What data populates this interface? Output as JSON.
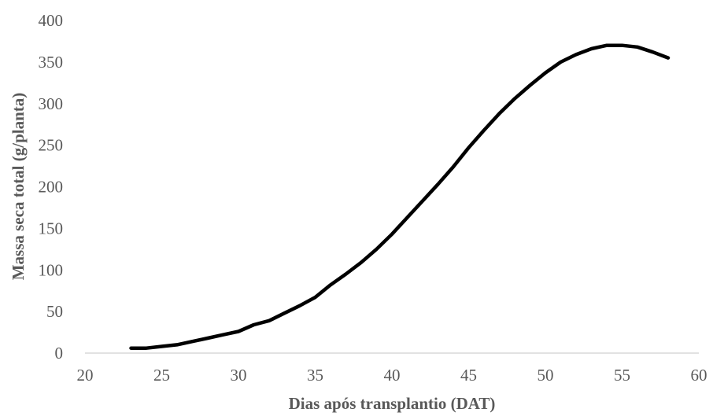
{
  "chart_data": {
    "type": "line",
    "title": "",
    "xlabel": "Dias após transplantio (DAT)",
    "ylabel": "Massa seca total (g/planta)",
    "xlim": [
      20,
      60
    ],
    "ylim": [
      0,
      400
    ],
    "xticks": [
      20,
      25,
      30,
      35,
      40,
      45,
      50,
      55,
      60
    ],
    "yticks": [
      0,
      50,
      100,
      150,
      200,
      250,
      300,
      350,
      400
    ],
    "grid": false,
    "legend": "none",
    "line_color": "#000000",
    "series": [
      {
        "x": [
          23,
          24,
          25,
          26,
          27,
          28,
          29,
          30,
          31,
          32,
          33,
          34,
          35,
          36,
          37,
          38,
          39,
          40,
          41,
          42,
          43,
          44,
          45,
          46,
          47,
          48,
          49,
          50,
          51,
          52,
          53,
          54,
          55,
          56,
          57,
          58
        ],
        "values": [
          6,
          6,
          8,
          10,
          14,
          18,
          22,
          26,
          34,
          39,
          48,
          57,
          67,
          82,
          95,
          109,
          125,
          143,
          163,
          183,
          203,
          224,
          247,
          268,
          288,
          306,
          322,
          337,
          350,
          359,
          366,
          370,
          370,
          368,
          362,
          355
        ]
      }
    ]
  }
}
